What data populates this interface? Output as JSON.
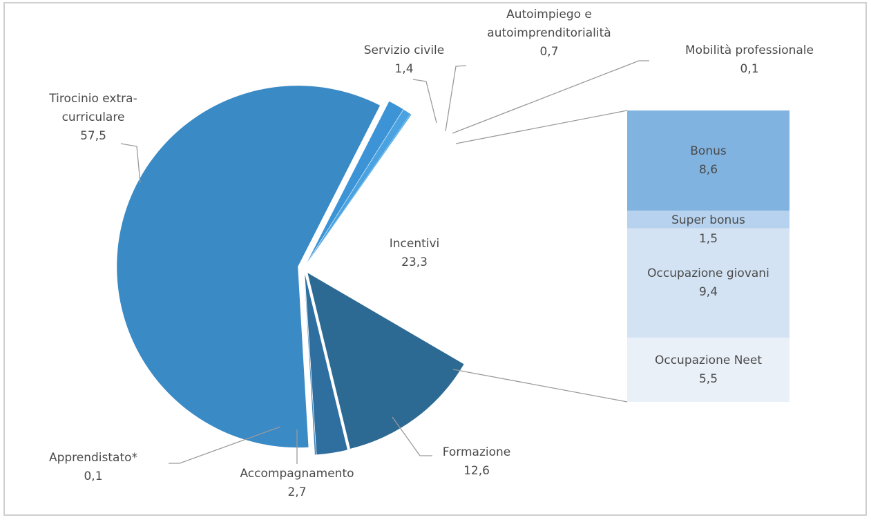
{
  "chart_data": [
    {
      "type": "pie",
      "categories": [
        "Servizio civile",
        "Autoimpiego e autoimprenditorialità",
        "Mobilità professionale",
        "Incentivi",
        "Formazione",
        "Accompagnamento",
        "Apprendistato*",
        "Tirocinio extra-curriculare"
      ],
      "values": [
        1.4,
        0.7,
        0.1,
        23.3,
        12.6,
        2.7,
        0.1,
        57.5
      ],
      "value_labels": [
        "1,4",
        "0,7",
        "0,1",
        "23,3",
        "12,6",
        "2,7",
        "0,1",
        "57,5"
      ],
      "colors": [
        "#3c93d6",
        "#4aa3e0",
        "#5cb0e8",
        "#ffffff",
        "#2c6a93",
        "#2f6f9f",
        "#3a82b8",
        "#3a8ac6"
      ]
    },
    {
      "type": "bar",
      "categories": [
        "Bonus",
        "Super bonus",
        "Occupazione giovani",
        "Occupazione Neet"
      ],
      "values": [
        8.6,
        1.5,
        9.4,
        5.5
      ],
      "value_labels": [
        "8,6",
        "1,5",
        "9,4",
        "5,5"
      ],
      "colors": [
        "#80b3e0",
        "#b6d2ee",
        "#d3e3f4",
        "#e9f0f8"
      ]
    }
  ]
}
